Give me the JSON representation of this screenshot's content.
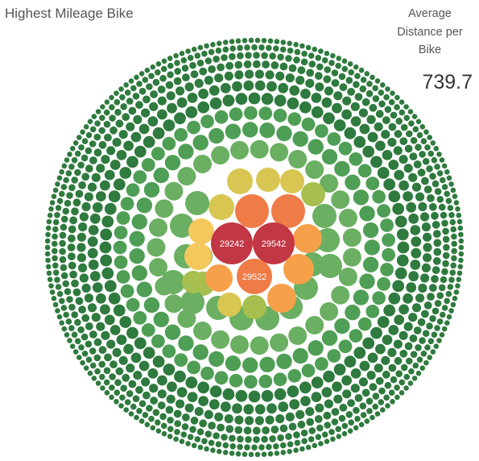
{
  "title": "Highest Mileage Bike",
  "kpi": {
    "label": "Average Distance per Bike",
    "value": "739.7"
  },
  "colors": {
    "darkest_green": "#2f7a3e",
    "green": "#4f9e55",
    "light_green": "#6aaf62",
    "yellow_green": "#a6bf4e",
    "yellow": "#d9c652",
    "light_orange": "#f5c85e",
    "orange": "#f7a04a",
    "dark_orange": "#ef7b47",
    "red": "#c23745"
  },
  "chart_data": {
    "type": "packed-bubble",
    "labeled_bubbles": [
      {
        "label": "29242",
        "rank": 1
      },
      {
        "label": "29542",
        "rank": 2
      },
      {
        "label": "29522",
        "rank": 3
      }
    ]
  }
}
